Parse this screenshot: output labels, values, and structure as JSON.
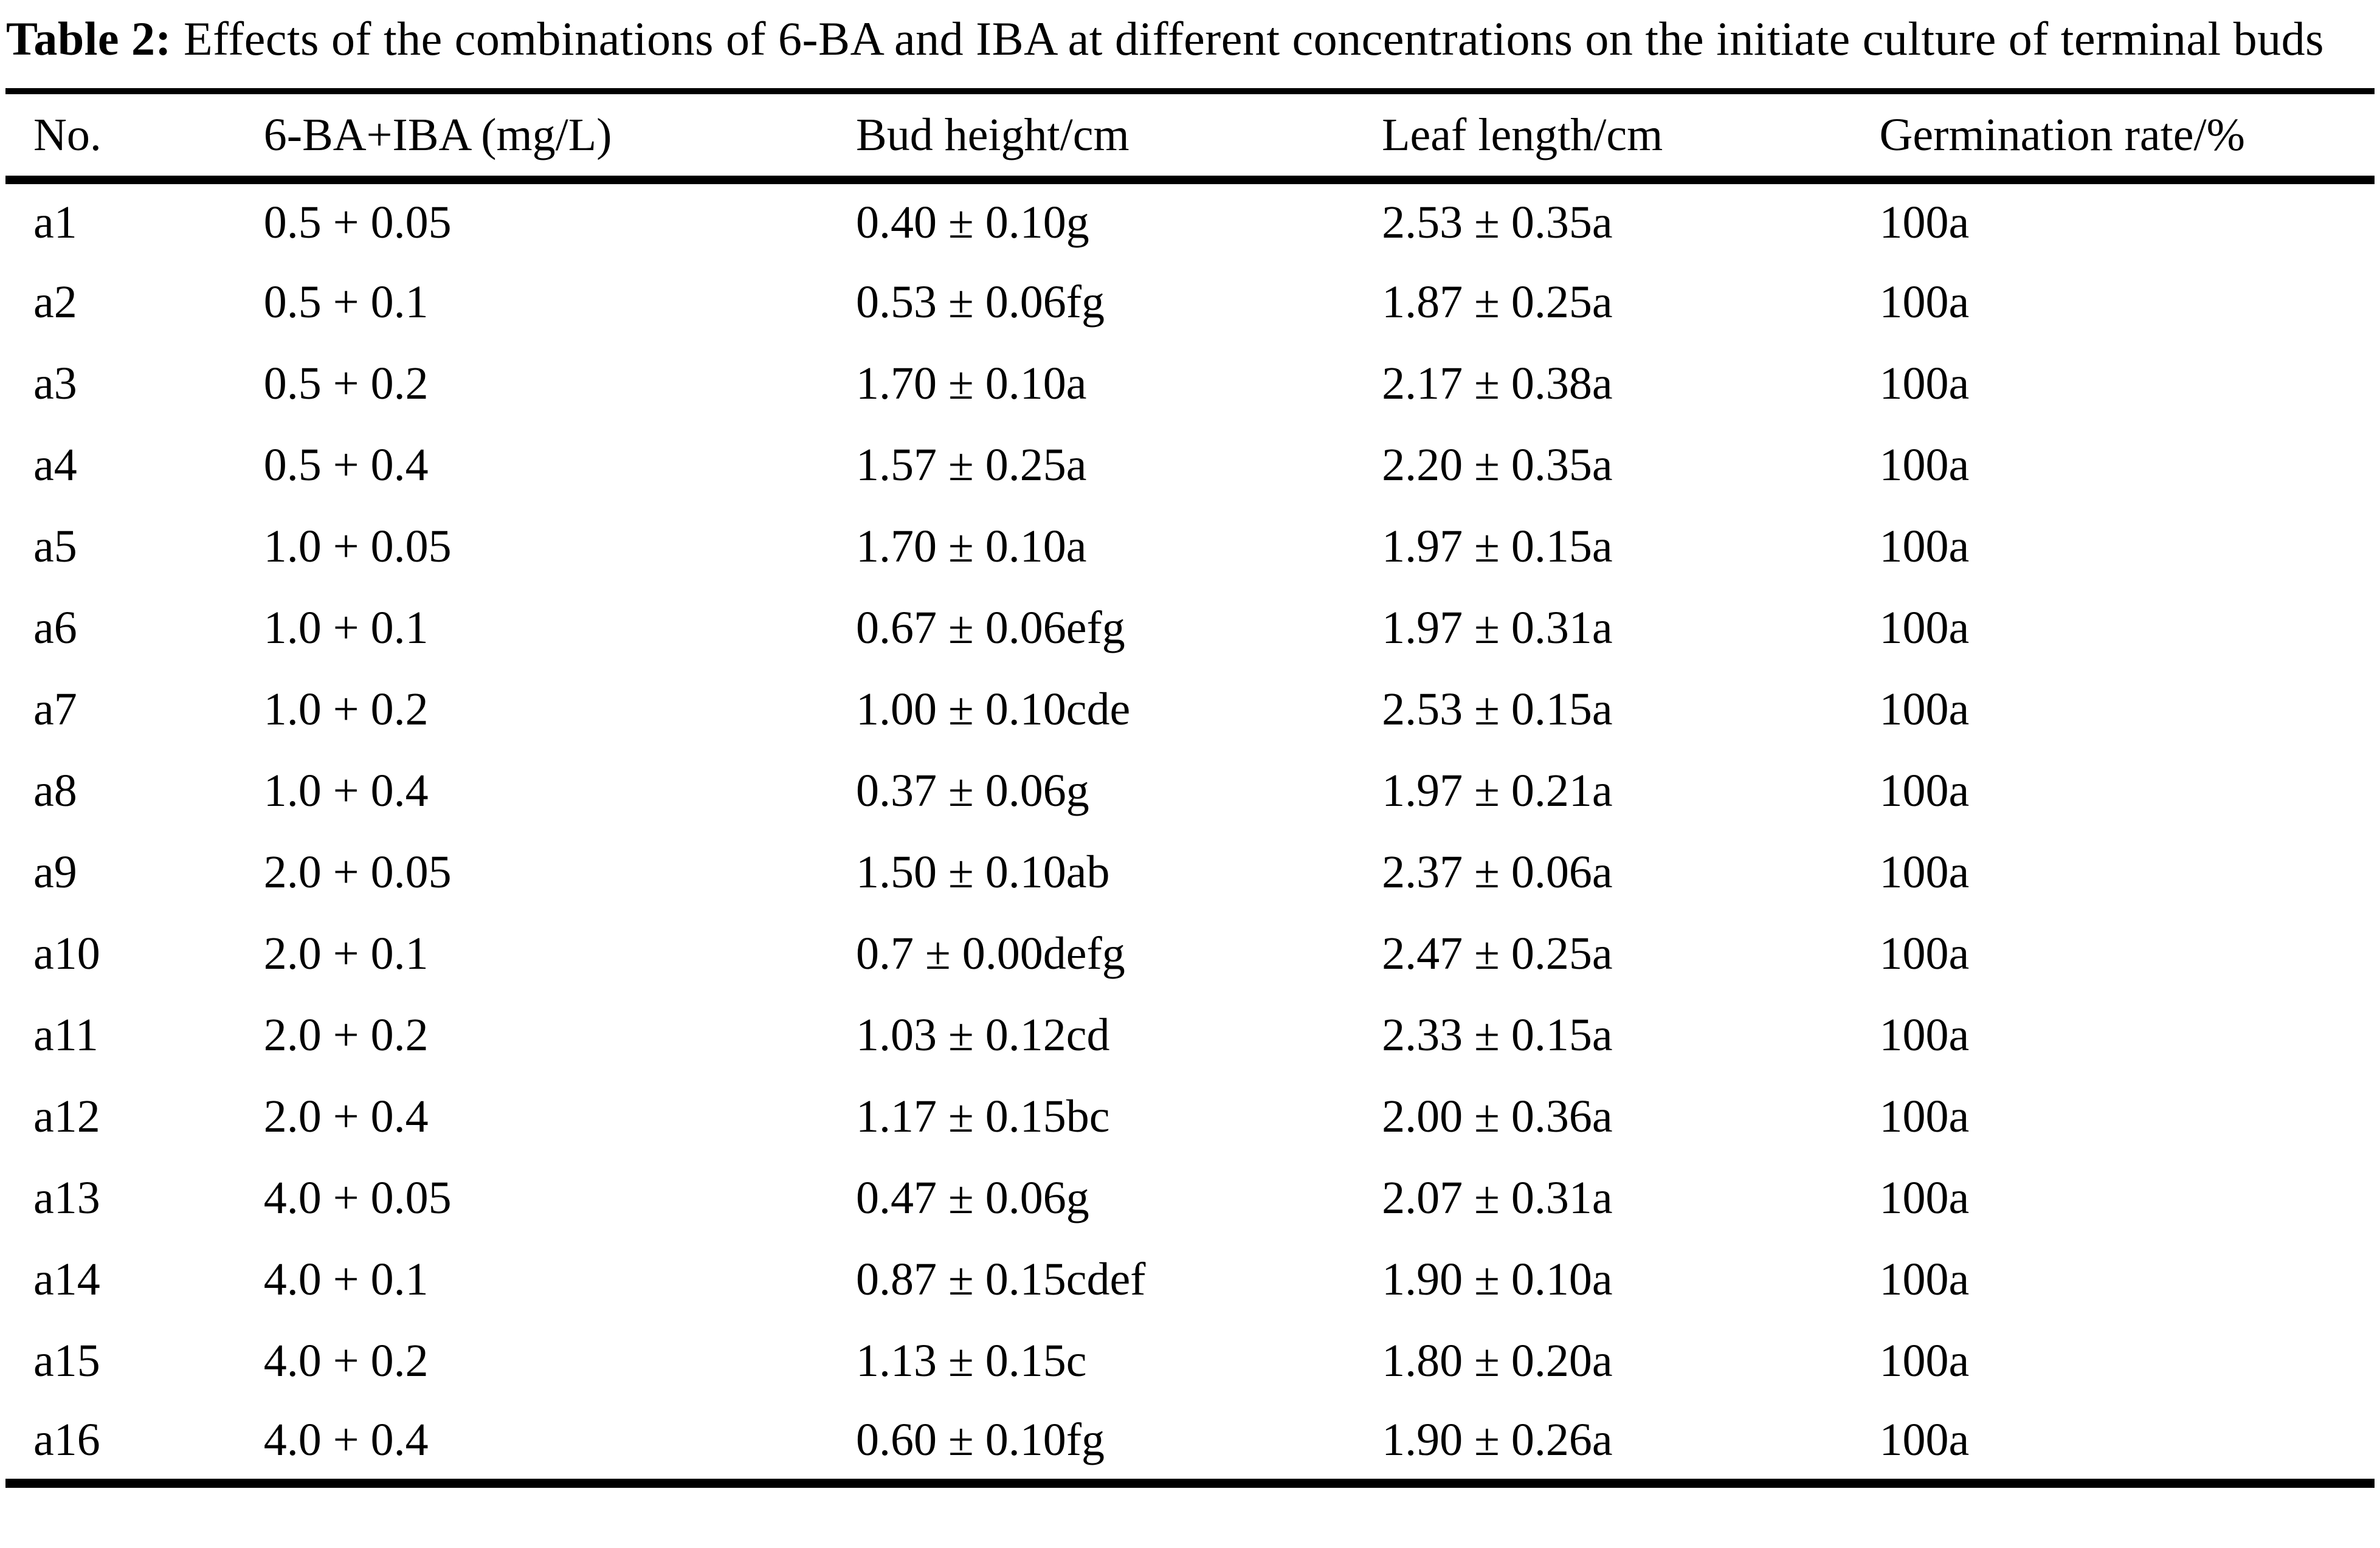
{
  "title": {
    "label": "Table 2:",
    "text": "Effects of the combinations of 6-BA and IBA at different concentrations on the initiate culture of terminal buds"
  },
  "table": {
    "columns": [
      "No.",
      "6-BA+IBA (mg/L)",
      "Bud height/cm",
      "Leaf length/cm",
      "Germination rate/%"
    ],
    "column_keys": [
      "no",
      "6ba-iba",
      "bud-height",
      "leaf-length",
      "germination-rate"
    ],
    "rows": [
      [
        "a1",
        "0.5 + 0.05",
        "0.40 ± 0.10g",
        "2.53 ± 0.35a",
        "100a"
      ],
      [
        "a2",
        "0.5 + 0.1",
        "0.53 ± 0.06fg",
        "1.87 ± 0.25a",
        "100a"
      ],
      [
        "a3",
        "0.5 + 0.2",
        "1.70 ± 0.10a",
        "2.17 ± 0.38a",
        "100a"
      ],
      [
        "a4",
        "0.5 + 0.4",
        "1.57 ± 0.25a",
        "2.20 ± 0.35a",
        "100a"
      ],
      [
        "a5",
        "1.0 + 0.05",
        "1.70 ± 0.10a",
        "1.97 ± 0.15a",
        "100a"
      ],
      [
        "a6",
        "1.0 + 0.1",
        "0.67 ± 0.06efg",
        "1.97 ± 0.31a",
        "100a"
      ],
      [
        "a7",
        "1.0 + 0.2",
        "1.00 ± 0.10cde",
        "2.53 ± 0.15a",
        "100a"
      ],
      [
        "a8",
        "1.0 + 0.4",
        "0.37 ± 0.06g",
        "1.97 ± 0.21a",
        "100a"
      ],
      [
        "a9",
        "2.0 + 0.05",
        "1.50 ± 0.10ab",
        "2.37 ± 0.06a",
        "100a"
      ],
      [
        "a10",
        "2.0 + 0.1",
        "0.7 ± 0.00defg",
        "2.47 ± 0.25a",
        "100a"
      ],
      [
        "a11",
        "2.0 + 0.2",
        "1.03 ± 0.12cd",
        "2.33 ± 0.15a",
        "100a"
      ],
      [
        "a12",
        "2.0 + 0.4",
        "1.17 ± 0.15bc",
        "2.00 ± 0.36a",
        "100a"
      ],
      [
        "a13",
        "4.0 + 0.05",
        "0.47 ± 0.06g",
        "2.07 ± 0.31a",
        "100a"
      ],
      [
        "a14",
        "4.0 + 0.1",
        "0.87 ± 0.15cdef",
        "1.90 ± 0.10a",
        "100a"
      ],
      [
        "a15",
        "4.0 + 0.2",
        "1.13 ± 0.15c",
        "1.80 ± 0.20a",
        "100a"
      ],
      [
        "a16",
        "4.0 + 0.4",
        "0.60 ± 0.10fg",
        "1.90 ± 0.26a",
        "100a"
      ]
    ]
  }
}
